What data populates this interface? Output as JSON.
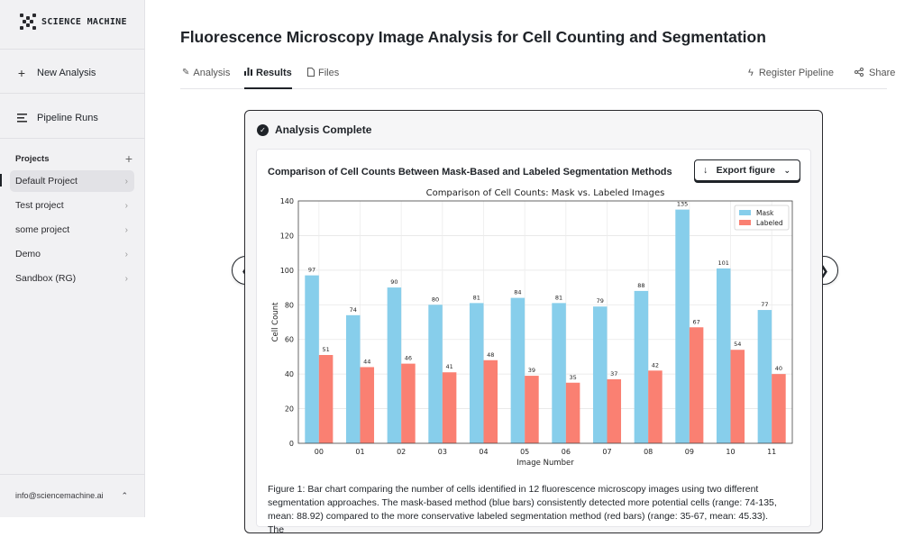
{
  "sidebar": {
    "logo_text": "SCIENCE MACHINE",
    "new_analysis": "New Analysis",
    "pipeline_runs": "Pipeline Runs",
    "projects_label": "Projects",
    "projects": [
      {
        "label": "Default Project",
        "active": true
      },
      {
        "label": "Test project",
        "active": false
      },
      {
        "label": "some project",
        "active": false
      },
      {
        "label": "Demo",
        "active": false
      },
      {
        "label": "Sandbox (RG)",
        "active": false
      }
    ],
    "user_email": "info@sciencemachine.ai"
  },
  "header": {
    "title": "Fluorescence Microscopy Image Analysis for Cell Counting and Segmentation"
  },
  "tabs": {
    "analysis": "Analysis",
    "results": "Results",
    "files": "Files",
    "register_pipeline": "Register Pipeline",
    "share": "Share"
  },
  "card": {
    "status": "Analysis Complete",
    "figure_title": "Comparison of Cell Counts Between Mask-Based and Labeled Segmentation Methods",
    "export_label": "Export figure",
    "caption": "Figure 1: Bar chart comparing the number of cells identified in 12 fluorescence microscopy images using two different segmentation approaches. The mask-based method (blue bars) consistently detected more potential cells (range: 74-135, mean: 88.92) compared to the more conservative labeled segmentation method (red bars) (range: 35-67, mean: 45.33). The"
  },
  "colors": {
    "mask": "#87ceeb",
    "labeled": "#fa8072"
  },
  "chart_data": {
    "type": "bar",
    "title": "Comparison of Cell Counts: Mask vs. Labeled Images",
    "xlabel": "Image Number",
    "ylabel": "Cell Count",
    "categories": [
      "00",
      "01",
      "02",
      "03",
      "04",
      "05",
      "06",
      "07",
      "08",
      "09",
      "10",
      "11"
    ],
    "series": [
      {
        "name": "Mask",
        "values": [
          97,
          74,
          90,
          80,
          81,
          84,
          81,
          79,
          88,
          135,
          101,
          77
        ]
      },
      {
        "name": "Labeled",
        "values": [
          51,
          44,
          46,
          41,
          48,
          39,
          35,
          37,
          42,
          67,
          54,
          40
        ]
      }
    ],
    "ylim": [
      0,
      140
    ],
    "yticks": [
      0,
      20,
      40,
      60,
      80,
      100,
      120,
      140
    ],
    "grid": true,
    "legend": "top-right"
  }
}
